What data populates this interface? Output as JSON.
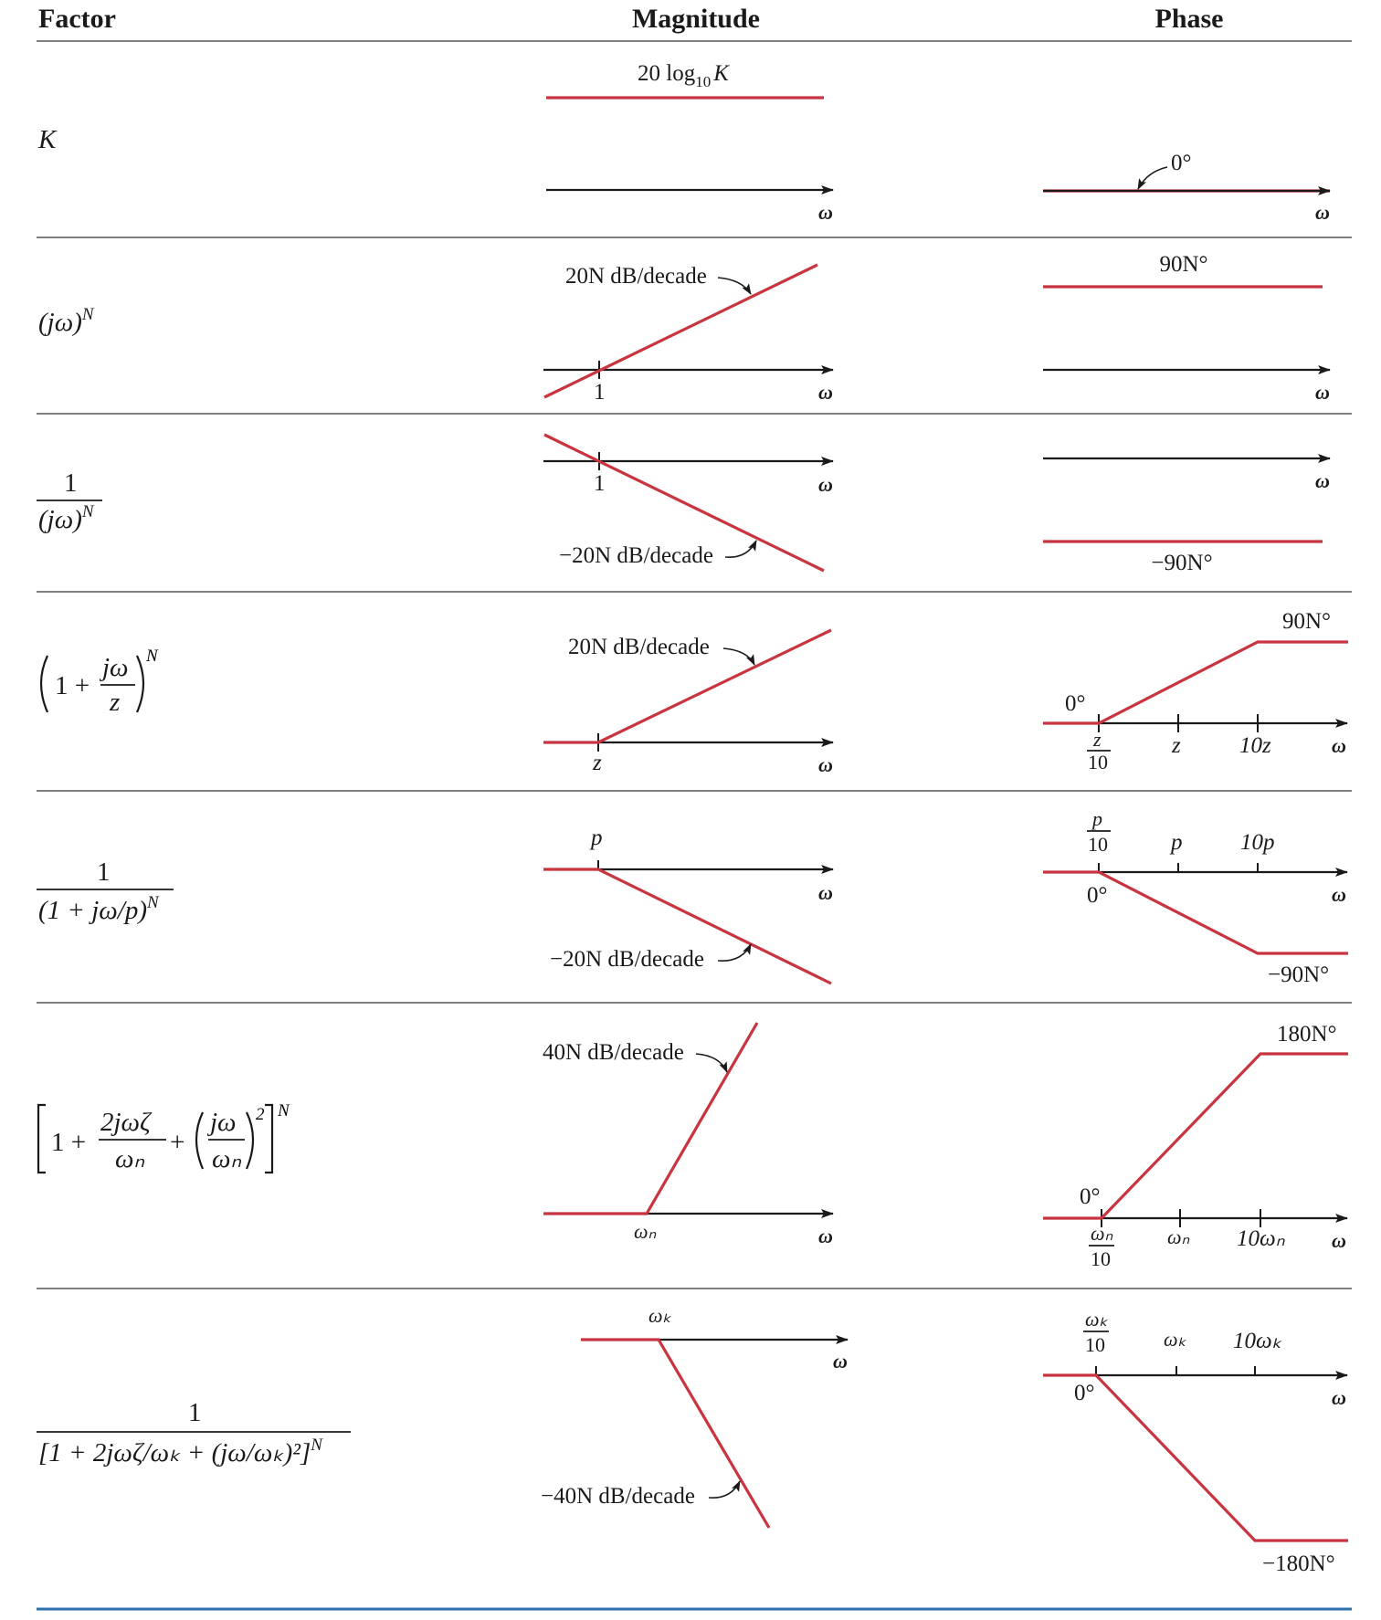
{
  "headers": {
    "factor": "Factor",
    "magnitude": "Magnitude",
    "phase": "Phase"
  },
  "colors": {
    "plot": "#c8343f",
    "axis": "#1a1a1a",
    "rule": "#555555",
    "bottom_rule": "#2f6faf"
  },
  "icons": {
    "axis_arrow": "arrowhead-icon",
    "callout": "curved-leader-icon"
  },
  "axis_label": "ω",
  "rows": {
    "k": {
      "factor": "K",
      "mag_label": "20 log",
      "mag_label_sub": "10",
      "mag_label_var": "K",
      "phase_label": "0°"
    },
    "jw": {
      "factor_base": "(jω)",
      "factor_exp": "N",
      "mag_slope": "20N dB/decade",
      "mag_tick": "1",
      "phase_label": "90N°"
    },
    "inv_jw": {
      "factor_num": "1",
      "factor_den": "(jω)",
      "factor_exp": "N",
      "mag_slope": "−20N dB/decade",
      "mag_tick": "1",
      "phase_label": "−90N°"
    },
    "zero": {
      "factor_one": "1 +",
      "factor_num": "jω",
      "factor_den": "z",
      "factor_exp": "N",
      "mag_slope": "20N dB/decade",
      "mag_tick": "z",
      "phase_start": "0°",
      "phase_end": "90N°",
      "tick_frac_num": "z",
      "tick_frac_den": "10",
      "tick_mid": "z",
      "tick_high": "10z"
    },
    "pole": {
      "factor_num": "1",
      "factor_den": "(1 + jω/p)",
      "factor_exp": "N",
      "mag_slope": "−20N dB/decade",
      "mag_tick": "p",
      "phase_start": "0°",
      "phase_end": "−90N°",
      "tick_frac_num": "p",
      "tick_frac_den": "10",
      "tick_mid": "p",
      "tick_high": "10p"
    },
    "quad_zero": {
      "factor_one": "1 +",
      "factor_num1": "2jωζ",
      "factor_den1": "ωₙ",
      "factor_plus": "+",
      "factor_num2": "jω",
      "factor_den2": "ωₙ",
      "factor_sq": "2",
      "factor_exp": "N",
      "mag_slope": "40N dB/decade",
      "mag_tick": "ωₙ",
      "phase_start": "0°",
      "phase_end": "180N°",
      "tick_frac_num": "ωₙ",
      "tick_frac_den": "10",
      "tick_mid": "ωₙ",
      "tick_high": "10ωₙ"
    },
    "quad_pole": {
      "factor_num": "1",
      "factor_den": "[1 + 2jωζ/ωₖ + (jω/ωₖ)²]",
      "factor_exp": "N",
      "mag_slope": "−40N dB/decade",
      "mag_tick": "ωₖ",
      "phase_start": "0°",
      "phase_end": "−180N°",
      "tick_frac_num": "ωₖ",
      "tick_frac_den": "10",
      "tick_mid": "ωₖ",
      "tick_high": "10ωₖ"
    }
  }
}
